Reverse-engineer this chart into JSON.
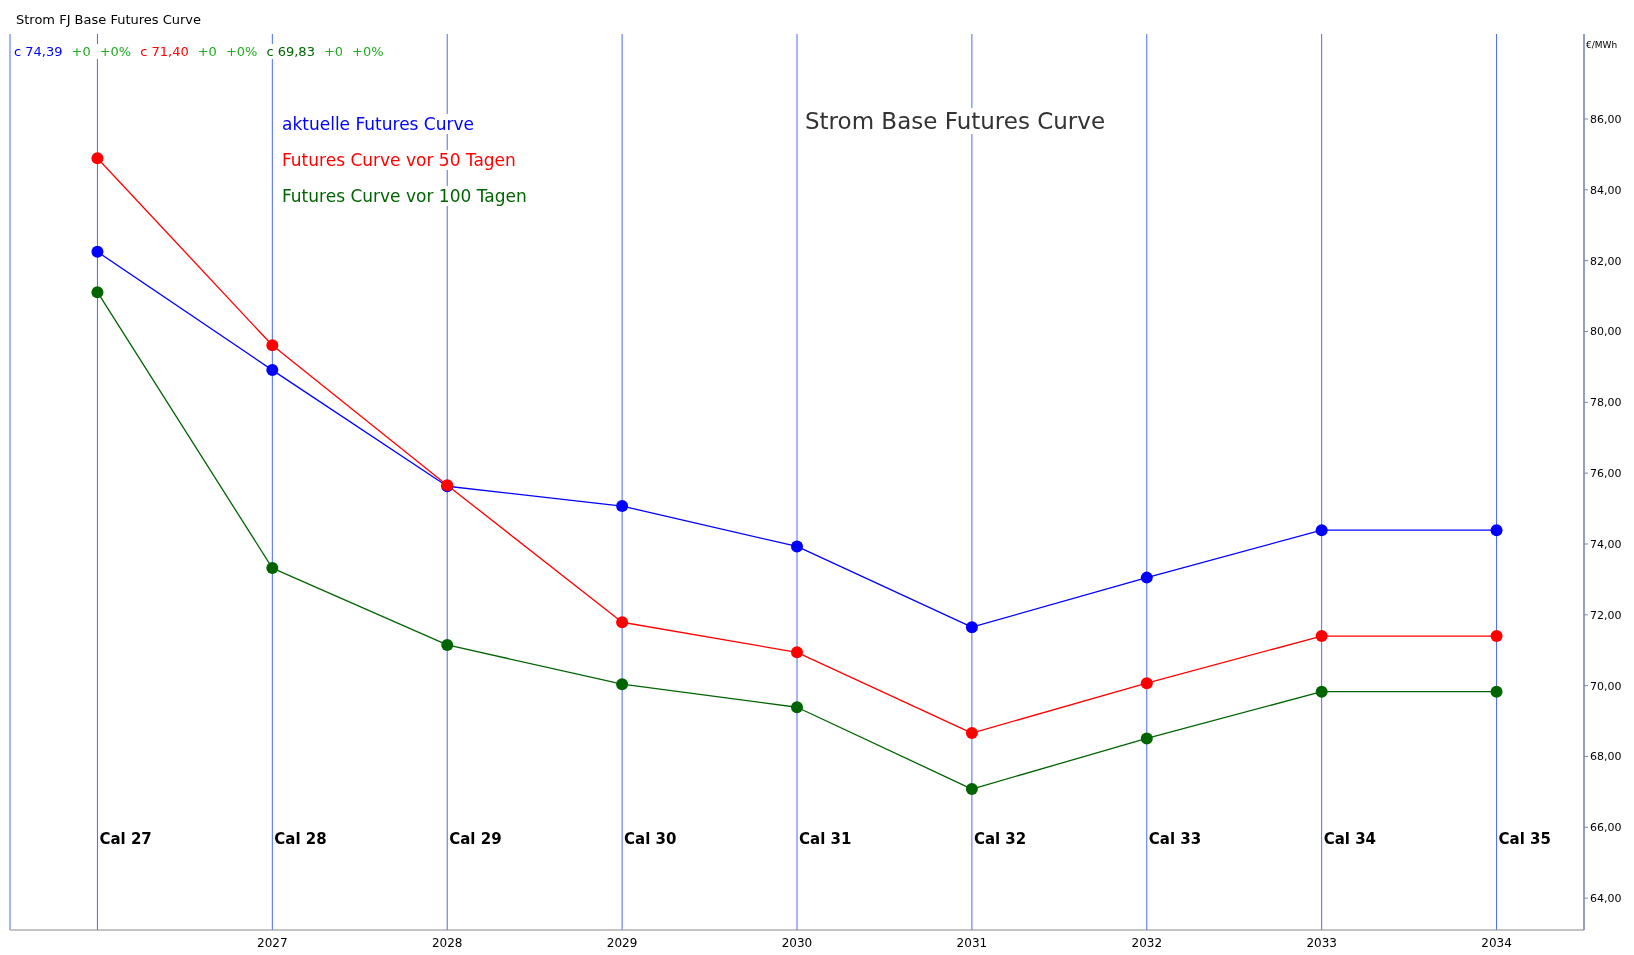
{
  "chart_data": {
    "type": "line",
    "title": "Strom Base Futures Curve",
    "subtitle": "Strom FJ Base Futures Curve",
    "ylabel": "€/MWh",
    "categories": [
      null,
      "2027",
      "2028",
      "2029",
      "2030",
      "2031",
      "2032",
      "2033",
      "2034"
    ],
    "series": [
      {
        "name": "aktuelle Futures Curve",
        "color": "#0000ff",
        "values": [
          82.25,
          78.91,
          75.63,
          75.07,
          73.93,
          71.65,
          73.05,
          74.39,
          74.39
        ]
      },
      {
        "name": "Futures Curve vor 50 Tagen",
        "color": "#ff0000",
        "values": [
          84.89,
          79.61,
          75.66,
          71.79,
          70.94,
          68.66,
          70.07,
          71.4,
          71.4
        ]
      },
      {
        "name": "Futures Curve vor 100 Tagen",
        "color": "#006400",
        "values": [
          81.11,
          73.32,
          71.15,
          70.04,
          69.39,
          67.08,
          68.51,
          69.83,
          69.83
        ]
      }
    ],
    "ylim": [
      63.1,
      88.4
    ],
    "yticks": [
      {
        "value": 64,
        "label": "64,00"
      },
      {
        "value": 66,
        "label": "66,00"
      },
      {
        "value": 68,
        "label": "68,00"
      },
      {
        "value": 70,
        "label": "70,00"
      },
      {
        "value": 72,
        "label": "72,00"
      },
      {
        "value": 74,
        "label": "74,00"
      },
      {
        "value": 76,
        "label": "76,00"
      },
      {
        "value": 78,
        "label": "78,00"
      },
      {
        "value": 80,
        "label": "80,00"
      },
      {
        "value": 82,
        "label": "82,00"
      },
      {
        "value": 84,
        "label": "84,00"
      },
      {
        "value": 86,
        "label": "86,00"
      }
    ],
    "grid": "x",
    "legend": "top left",
    "marker": "circle",
    "line_style": "solid",
    "annotations": [
      "c 74,39",
      "+0",
      "+0%",
      "c 71,40",
      "+0",
      "+0%",
      "c 69,83",
      "+0",
      "+0%",
      "Cal 27",
      "Cal 28",
      "Cal 29",
      "Cal 30",
      "Cal 31",
      "Cal 32",
      "Cal 33",
      "Cal 34",
      "Cal 35"
    ]
  }
}
